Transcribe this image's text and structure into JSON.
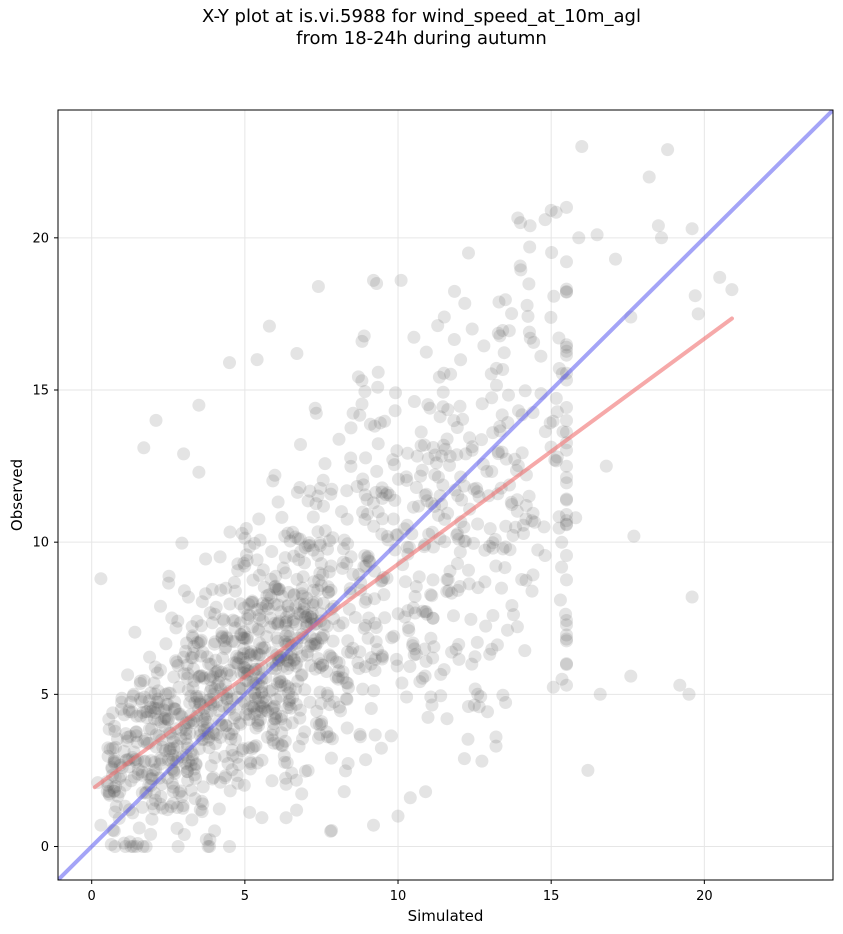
{
  "chart_data": {
    "type": "scatter",
    "title": "X-Y plot at is.vi.5988 for wind_speed_at_10m_agl",
    "subtitle": "from 18-24h during autumn",
    "xlabel": "Simulated",
    "ylabel": "Observed",
    "xlim": [
      -1.1,
      24.2
    ],
    "ylim": [
      -1.1,
      24.2
    ],
    "xticks": [
      0,
      5,
      10,
      15,
      20
    ],
    "yticks": [
      0,
      5,
      10,
      15,
      20
    ],
    "grid": true,
    "colors": {
      "points": "#555555",
      "identity_line": "#5a5af0",
      "fit_line": "#f07070"
    },
    "identity_line": {
      "x": [
        -1.1,
        24.2
      ],
      "y": [
        -1.1,
        24.2
      ]
    },
    "fit_line": {
      "x": [
        0.1,
        20.9
      ],
      "y": [
        1.95,
        17.35
      ]
    },
    "notable_points": [
      {
        "x": 0.3,
        "y": 8.8
      },
      {
        "x": 1.7,
        "y": 13.1
      },
      {
        "x": 2.1,
        "y": 14.0
      },
      {
        "x": 3.5,
        "y": 14.5
      },
      {
        "x": 4.5,
        "y": 15.9
      },
      {
        "x": 5.4,
        "y": 16.0
      },
      {
        "x": 5.8,
        "y": 17.1
      },
      {
        "x": 6.7,
        "y": 16.2
      },
      {
        "x": 7.4,
        "y": 18.4
      },
      {
        "x": 9.2,
        "y": 18.6
      },
      {
        "x": 10.1,
        "y": 18.6
      },
      {
        "x": 9.3,
        "y": 18.5
      },
      {
        "x": 12.3,
        "y": 19.5
      },
      {
        "x": 14.0,
        "y": 20.5
      },
      {
        "x": 14.3,
        "y": 19.7
      },
      {
        "x": 14.8,
        "y": 20.6
      },
      {
        "x": 15.0,
        "y": 20.9
      },
      {
        "x": 15.9,
        "y": 20.0
      },
      {
        "x": 16.5,
        "y": 20.1
      },
      {
        "x": 16.0,
        "y": 23.0
      },
      {
        "x": 18.2,
        "y": 22.0
      },
      {
        "x": 18.8,
        "y": 22.9
      },
      {
        "x": 18.5,
        "y": 20.4
      },
      {
        "x": 18.6,
        "y": 20.0
      },
      {
        "x": 19.6,
        "y": 20.3
      },
      {
        "x": 19.7,
        "y": 18.1
      },
      {
        "x": 19.8,
        "y": 17.5
      },
      {
        "x": 20.5,
        "y": 18.7
      },
      {
        "x": 20.9,
        "y": 18.3
      },
      {
        "x": 17.1,
        "y": 19.3
      },
      {
        "x": 17.6,
        "y": 17.4
      },
      {
        "x": 16.8,
        "y": 12.5
      },
      {
        "x": 17.7,
        "y": 10.2
      },
      {
        "x": 15.8,
        "y": 10.8
      },
      {
        "x": 15.3,
        "y": 8.1
      },
      {
        "x": 15.5,
        "y": 5.3
      },
      {
        "x": 16.2,
        "y": 2.5
      },
      {
        "x": 16.6,
        "y": 5.0
      },
      {
        "x": 17.6,
        "y": 5.6
      },
      {
        "x": 19.2,
        "y": 5.3
      },
      {
        "x": 19.5,
        "y": 5.0
      },
      {
        "x": 19.6,
        "y": 8.2
      },
      {
        "x": 13.2,
        "y": 3.3
      },
      {
        "x": 13.2,
        "y": 3.6
      },
      {
        "x": 11.6,
        "y": 4.2
      },
      {
        "x": 12.3,
        "y": 4.6
      },
      {
        "x": 12.6,
        "y": 5.0
      },
      {
        "x": 10.4,
        "y": 1.6
      },
      {
        "x": 10.9,
        "y": 1.8
      },
      {
        "x": 10.0,
        "y": 1.0
      },
      {
        "x": 9.2,
        "y": 0.7
      },
      {
        "x": 7.8,
        "y": 0.5
      },
      {
        "x": 4.5,
        "y": 0.0
      },
      {
        "x": 3.8,
        "y": 0.0
      },
      {
        "x": 1.5,
        "y": 0.1
      },
      {
        "x": 0.3,
        "y": 0.7
      },
      {
        "x": 0.2,
        "y": 2.1
      },
      {
        "x": 0.6,
        "y": 3.2
      },
      {
        "x": 3.0,
        "y": 12.9
      },
      {
        "x": 3.5,
        "y": 12.3
      }
    ]
  }
}
